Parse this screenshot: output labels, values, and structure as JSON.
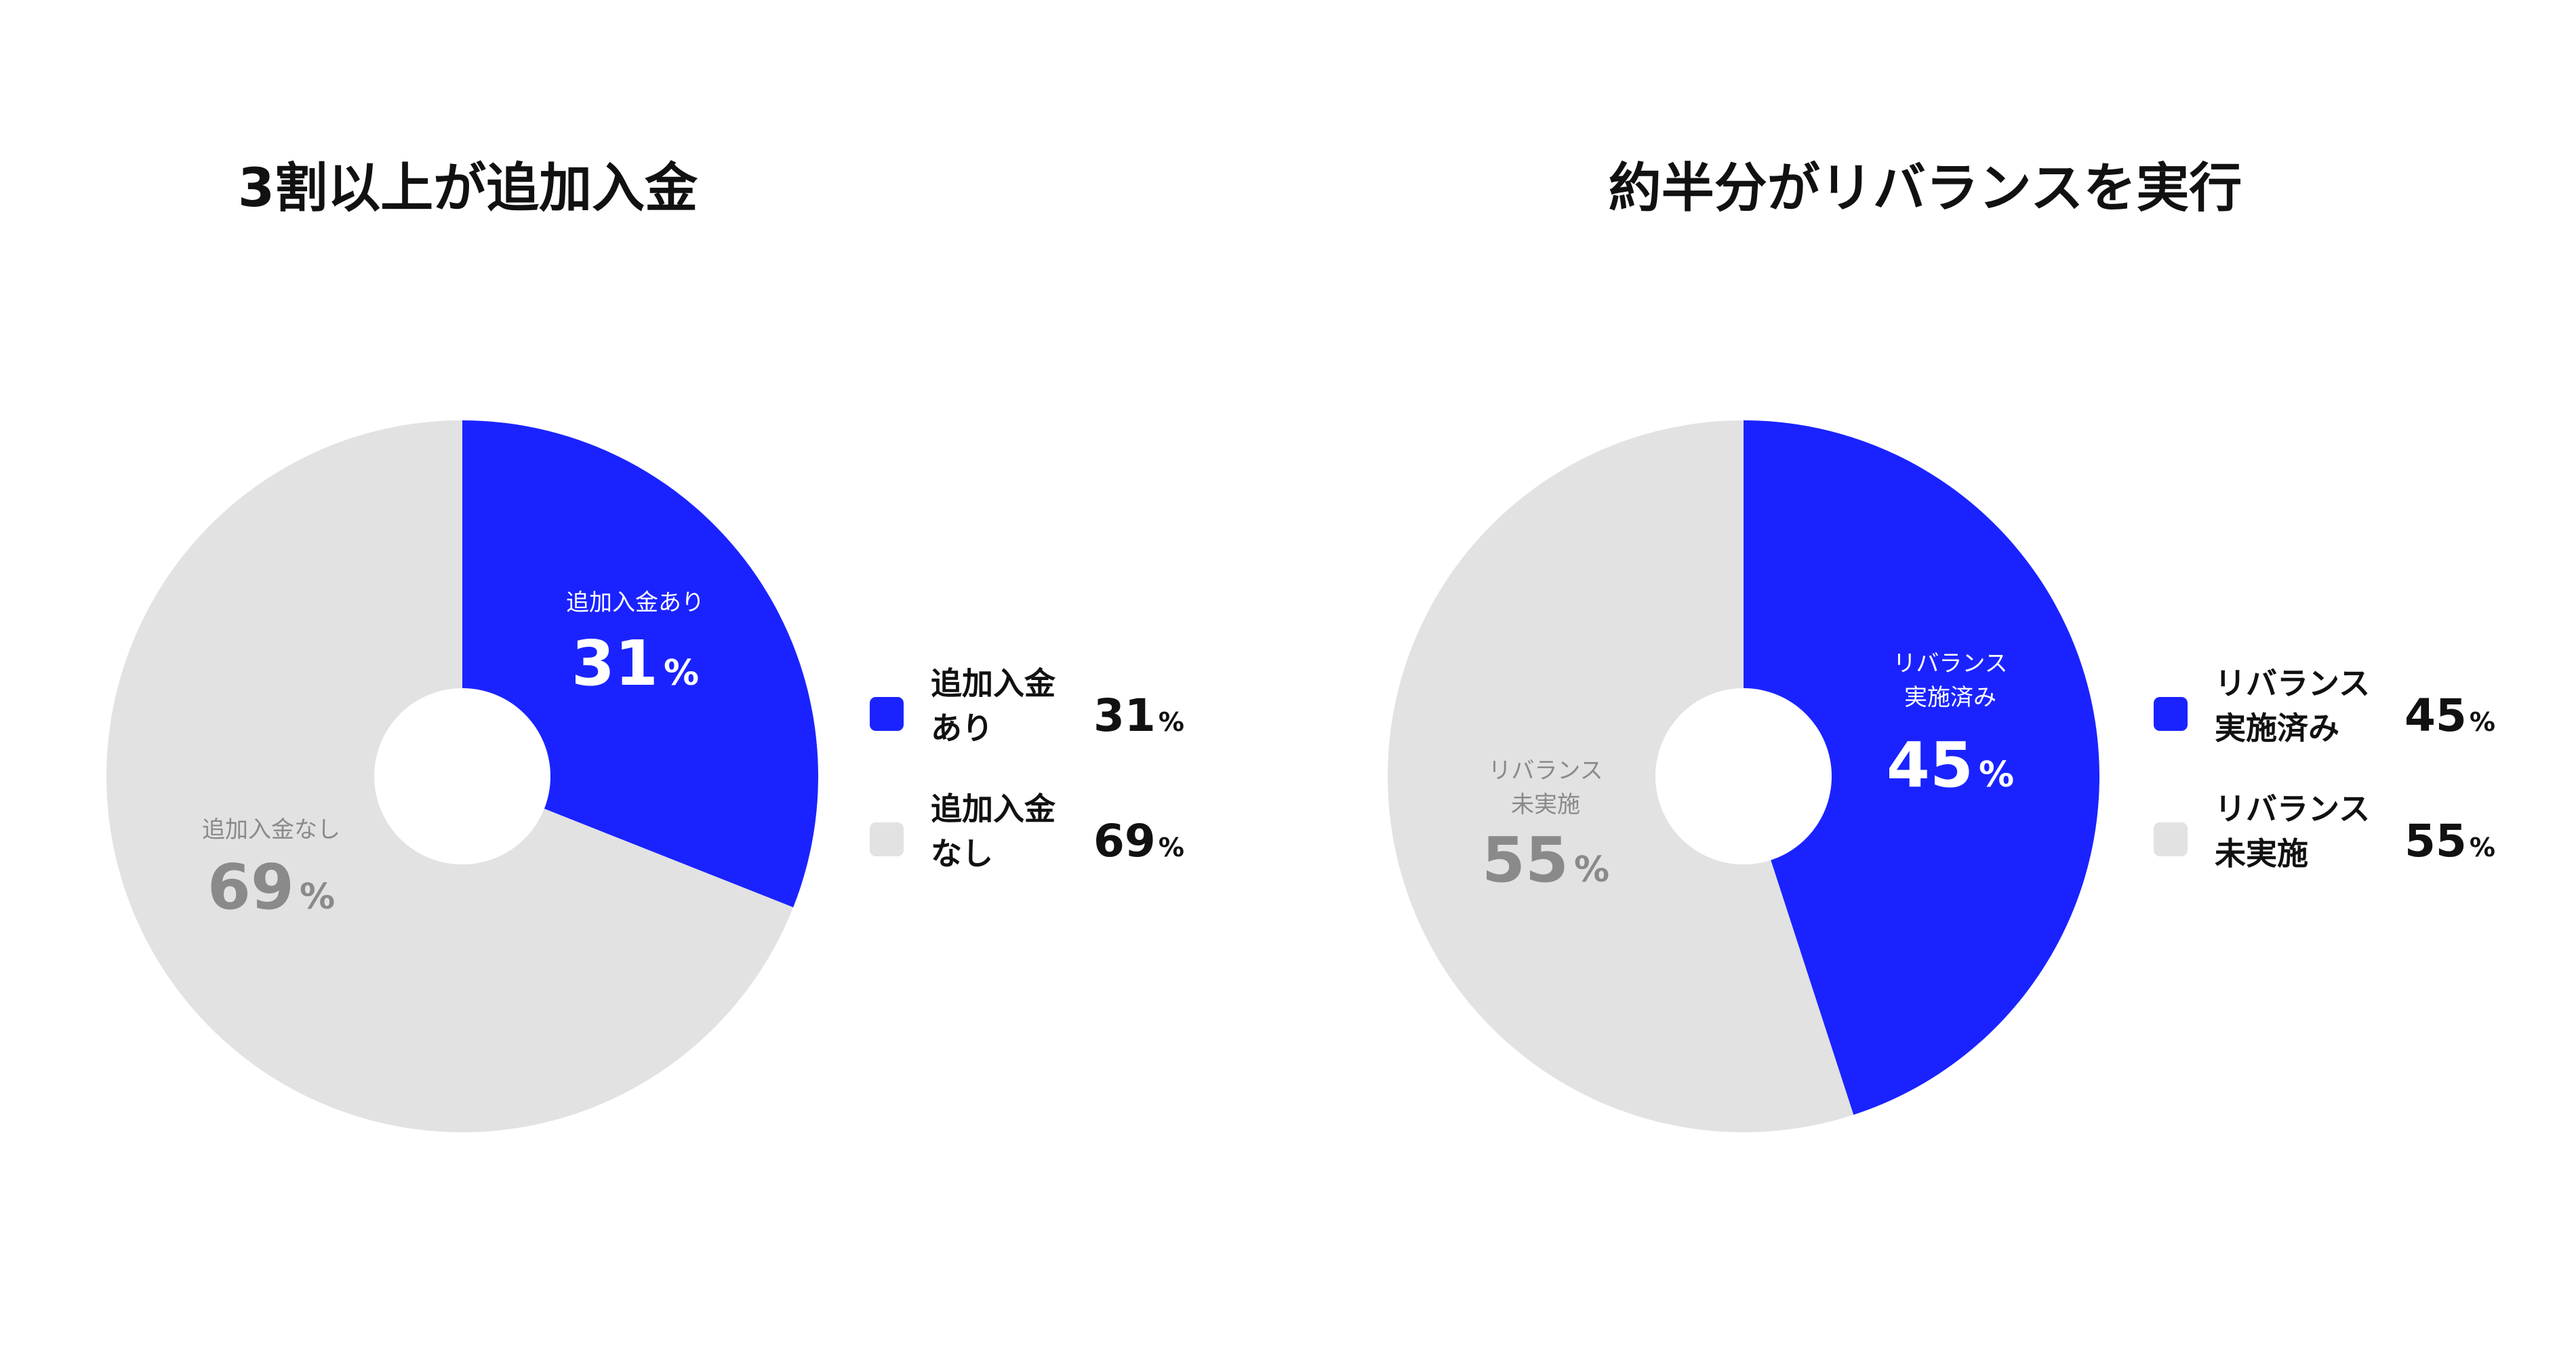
{
  "colors": {
    "accent": "#1a23ff",
    "muted": "#e2e2e2",
    "muted_text": "#8a8a8a",
    "text": "#111111",
    "background": "#ffffff"
  },
  "chart_data": [
    {
      "type": "pie",
      "donut": true,
      "title": "3割以上が追加入金",
      "start": "12 o'clock",
      "direction": "clockwise",
      "slices": [
        {
          "label": "追加入金あり",
          "legend_label": "追加入金\nあり",
          "value": 31,
          "unit": "%",
          "color": "#1a23ff"
        },
        {
          "label": "追加入金なし",
          "legend_label": "追加入金\nなし",
          "value": 69,
          "unit": "%",
          "color": "#e2e2e2"
        }
      ],
      "legend_placement": "right"
    },
    {
      "type": "pie",
      "donut": true,
      "title": "約半分がリバランスを実行",
      "start": "12 o'clock",
      "direction": "clockwise",
      "slices": [
        {
          "label": "リバランス\n実施済み",
          "legend_label": "リバランス\n実施済み",
          "value": 45,
          "unit": "%",
          "color": "#1a23ff"
        },
        {
          "label": "リバランス\n未実施",
          "legend_label": "リバランス\n未実施",
          "value": 55,
          "unit": "%",
          "color": "#e2e2e2"
        }
      ],
      "legend_placement": "right"
    }
  ]
}
